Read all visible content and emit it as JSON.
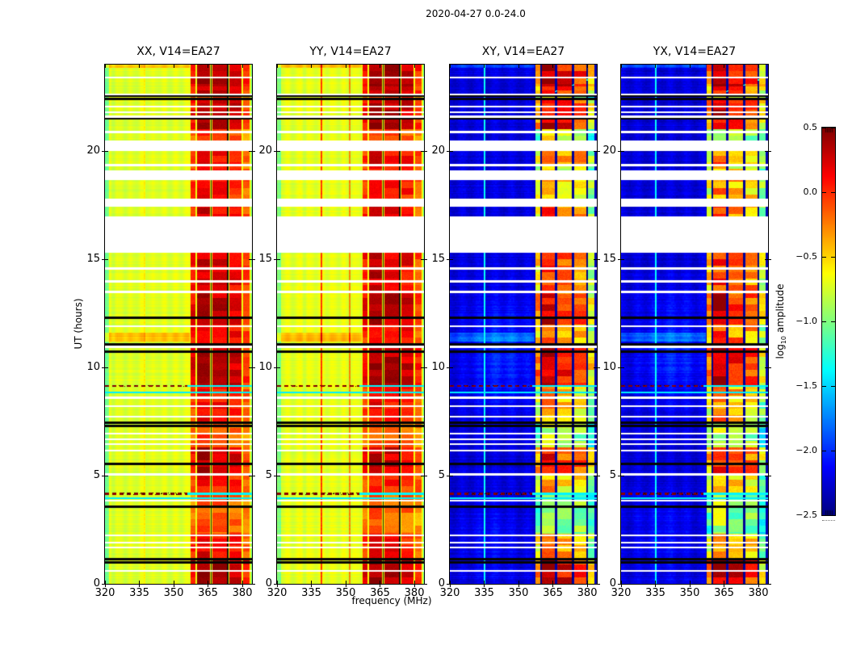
{
  "chart_data": {
    "type": "heatmap",
    "title": "2020-04-27 0.0-24.0",
    "xlabel": "frequency (MHz)",
    "ylabel": "UT (hours)",
    "x_axis": {
      "range_mhz": [
        320,
        384.2
      ],
      "tick_values": [
        320,
        335,
        350,
        365,
        380
      ],
      "tick_labels": [
        "320",
        "335",
        "350",
        "365",
        "380"
      ]
    },
    "y_axis": {
      "range_hours": [
        0,
        24
      ],
      "tick_values": [
        0,
        5,
        10,
        15,
        20
      ],
      "tick_labels": [
        "0",
        "5",
        "10",
        "15",
        "20"
      ]
    },
    "colorbar": {
      "label_log": "log",
      "label_sub": "10",
      "label_amp": " amplitude",
      "colormap": "jet",
      "vmin": -2.5,
      "vmax": 0.5,
      "tick_values": [
        0.5,
        0.0,
        -0.5,
        -1.0,
        -1.5,
        -2.0,
        -2.5
      ],
      "tick_labels": [
        "0.5",
        "0.0",
        "−0.5",
        "−1.0",
        "−1.5",
        "−2.0",
        "−2.5"
      ]
    },
    "panels": [
      {
        "title": "XX, V14=EA27",
        "style": "auto",
        "base": -0.72,
        "narrow_lines": [
          {
            "f": 337.4,
            "add": 0.14
          }
        ]
      },
      {
        "title": "YY, V14=EA27",
        "style": "auto",
        "base": -0.7,
        "narrow_lines": [
          {
            "f": 339.3,
            "add": 0.58
          },
          {
            "f": 351.8,
            "add": 0.5
          }
        ]
      },
      {
        "title": "XY, V14=EA27",
        "style": "cross",
        "base": -2.24,
        "narrow_lines": [
          {
            "f": 335.2,
            "set": -1.35
          }
        ]
      },
      {
        "title": "YX, V14=EA27",
        "style": "cross",
        "base": -2.24,
        "narrow_lines": [
          {
            "f": 335.2,
            "set": -1.35
          }
        ]
      }
    ],
    "features": {
      "band": {
        "range_mhz": [
          357.0,
          383.4
        ],
        "columns": [
          {
            "f0": 357.4,
            "f1": 359.4,
            "s": 0.75
          },
          {
            "f0": 360.2,
            "f1": 366.0,
            "s": 1.0
          },
          {
            "f0": 366.9,
            "f1": 373.3,
            "s": 0.92
          },
          {
            "f0": 374.2,
            "f1": 379.6,
            "s": 0.85
          },
          {
            "f0": 380.2,
            "f1": 383.3,
            "s": 0.6
          }
        ],
        "separators_dark_mhz": [
          366.4,
          373.7
        ],
        "separators_light_mhz": [
          359.9,
          379.9
        ],
        "time_intensity": [
          [
            0.0,
            1.2,
            1.0
          ],
          [
            1.2,
            2.3,
            0.75
          ],
          [
            2.3,
            4.2,
            0.48
          ],
          [
            4.2,
            5.1,
            0.68
          ],
          [
            5.1,
            6.3,
            0.9
          ],
          [
            6.3,
            7.5,
            0.5
          ],
          [
            7.5,
            9.2,
            0.72
          ],
          [
            9.2,
            11.1,
            1.0
          ],
          [
            11.1,
            12.0,
            0.8
          ],
          [
            12.0,
            13.4,
            0.95
          ],
          [
            13.4,
            15.3,
            0.85
          ],
          [
            17.0,
            17.8,
            0.8
          ],
          [
            17.8,
            18.7,
            0.72
          ],
          [
            18.7,
            19.4,
            0.62
          ],
          [
            19.4,
            20.0,
            0.78
          ],
          [
            20.5,
            21.0,
            0.55
          ],
          [
            21.0,
            22.4,
            0.95
          ],
          [
            22.6,
            23.0,
            0.88
          ],
          [
            23.0,
            24.0,
            1.0
          ]
        ]
      },
      "data_gaps_hours": [
        [
          15.3,
          17.0
        ],
        [
          17.42,
          17.8
        ],
        [
          18.68,
          19.1
        ],
        [
          20.0,
          20.5
        ]
      ],
      "missing_rows_hours": [
        23.4,
        22.62,
        22.05,
        21.8,
        21.6,
        20.88,
        19.35,
        14.58,
        13.98,
        13.5,
        11.9,
        10.95,
        8.6,
        8.22,
        7.72,
        6.95,
        6.68,
        6.45,
        6.15,
        5.05,
        3.84,
        2.25,
        1.9,
        1.68,
        0.6
      ],
      "flagged_rows_hours": [
        22.55,
        22.42,
        21.52,
        12.3,
        11.08,
        10.72,
        7.44,
        7.3,
        5.55,
        3.55,
        1.15,
        0.98
      ],
      "rfi_dashed_rows_hours": [
        9.15,
        4.15
      ],
      "cyan_rows_hours": [
        8.85,
        3.95
      ],
      "bright_rows_hours": [
        [
          11.2,
          11.6
        ],
        [
          23.85,
          24.0
        ]
      ],
      "cross_glow": [
        {
          "f": 342,
          "t": 10.7,
          "df": 14,
          "dt": 2.5,
          "amp": 0.22
        },
        {
          "f": 338,
          "t": 2.0,
          "df": 12,
          "dt": 2.2,
          "amp": 0.12
        }
      ],
      "cross_diagonals": [
        {
          "t0": 22.6,
          "t1": 23.35,
          "f_at_t0": 362,
          "slope": 26
        }
      ]
    }
  }
}
